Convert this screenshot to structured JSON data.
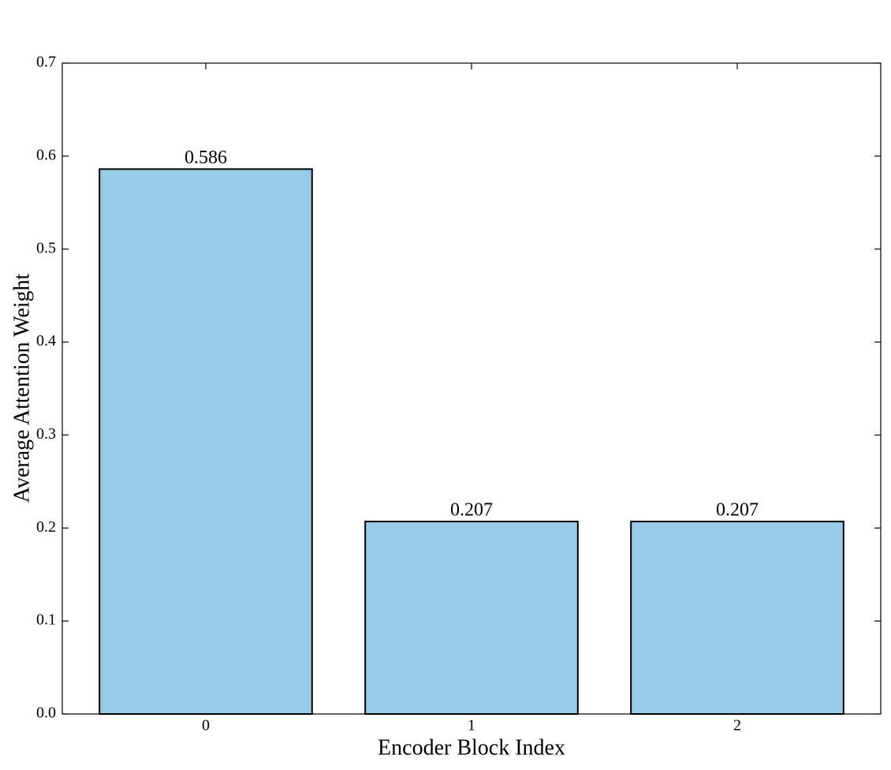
{
  "chart_data": {
    "type": "bar",
    "x_label": "Encoder Block Index",
    "y_label": "Average Attention Weight",
    "categories": [
      "0",
      "1",
      "2"
    ],
    "values": [
      0.586,
      0.207,
      0.207
    ],
    "color": "#97cbe8",
    "edge_color": "#000000",
    "ylim": [
      0,
      0.7
    ],
    "yticks": [
      {
        "value": 0,
        "label": "0.0"
      },
      0.1,
      0.2,
      0.3,
      0.4,
      0.5,
      0.6,
      0.7
    ],
    "grid": false
  }
}
